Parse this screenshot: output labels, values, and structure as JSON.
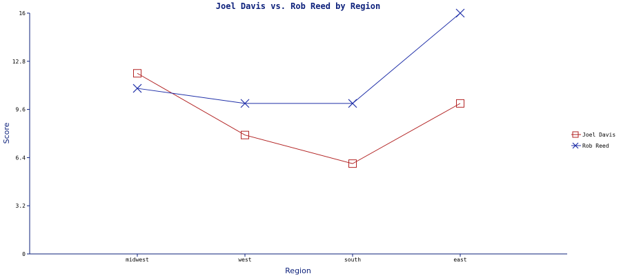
{
  "chart_data": {
    "type": "line",
    "title": "Joel Davis vs. Rob Reed by Region",
    "xlabel": "Region",
    "ylabel": "Score",
    "categories": [
      "midwest",
      "west",
      "south",
      "east"
    ],
    "ylim": [
      0,
      16
    ],
    "yticks": [
      "0",
      "3.2",
      "6.4",
      "9.6",
      "12.8",
      "16"
    ],
    "series": [
      {
        "name": "Joel Davis",
        "values": [
          12.0,
          7.9,
          6.0,
          10.0
        ],
        "color": "#b22222",
        "marker": "square"
      },
      {
        "name": "Rob Reed",
        "values": [
          11.0,
          10.0,
          10.0,
          16.0
        ],
        "color": "#1f2fa8",
        "marker": "x"
      }
    ],
    "grid": false,
    "legend_position": "right"
  }
}
